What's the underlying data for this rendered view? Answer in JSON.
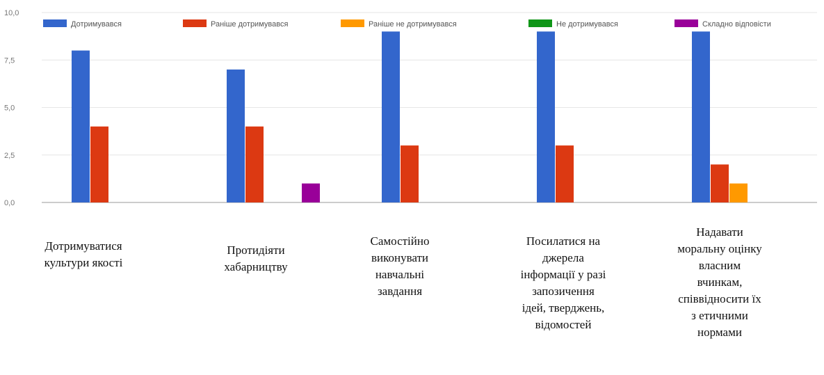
{
  "chart_data": {
    "type": "bar",
    "categories": [
      "Дотримуватися\nкультури якості",
      "Протидіяти\nхабарництву",
      "Самостійно\nвиконувати\nнавчальні\nзавдання",
      "Посилатися на\nджерела\nінформації у разі\nзапозичення\nідей, тверджень,\nвідомостей",
      "Надавати\nморальну оцінку\nвласним\nвчинкам,\nспіввідносити їх\nз етичними\nнормами"
    ],
    "series": [
      {
        "name": "Дотримувався",
        "color": "#3366cc",
        "values": [
          8,
          7,
          9,
          9,
          9
        ]
      },
      {
        "name": "Раніше дотримувався",
        "color": "#dc3912",
        "values": [
          4,
          4,
          3,
          3,
          2
        ]
      },
      {
        "name": "Раніше не дотримувався",
        "color": "#ff9900",
        "values": [
          0,
          0,
          0,
          0,
          1
        ]
      },
      {
        "name": "Не дотримувався",
        "color": "#109618",
        "values": [
          0,
          0,
          0,
          0,
          0
        ]
      },
      {
        "name": "Складно відповісти",
        "color": "#990099",
        "values": [
          0,
          1,
          0,
          0,
          0
        ]
      }
    ],
    "yticks": [
      "0,0",
      "2,5",
      "5,0",
      "7,5",
      "10,0"
    ],
    "ylim": [
      0,
      10
    ],
    "grid": true,
    "legend_position": "top"
  }
}
